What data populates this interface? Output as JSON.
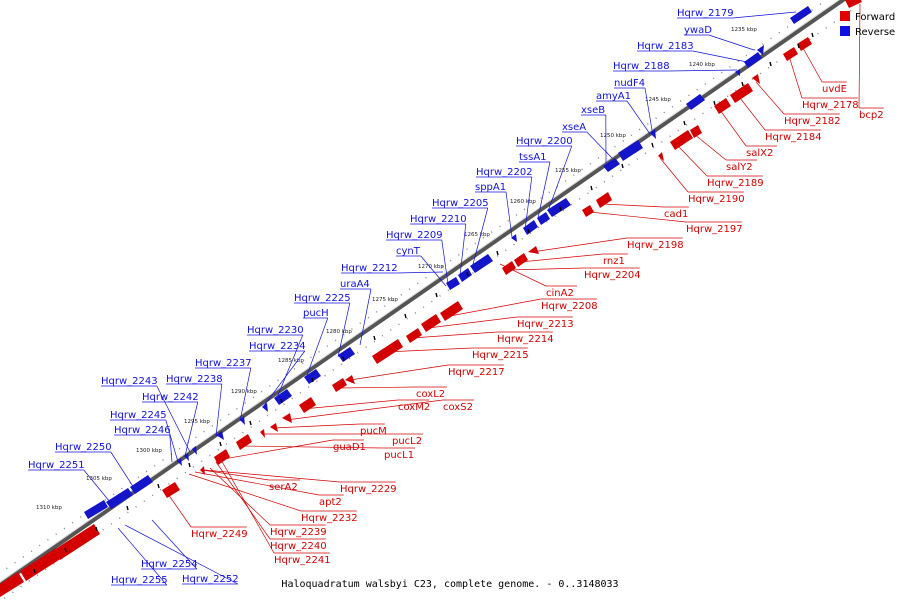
{
  "caption": "Haloquadratum walsbyi C23, complete genome. - 0..3148033",
  "legend": [
    {
      "label": "Forward",
      "color": "#e00000"
    },
    {
      "label": "Reverse",
      "color": "#1010e0"
    }
  ],
  "kbp_labels": [
    "1235 kbp",
    "1240 kbp",
    "1245 kbp",
    "1250 kbp",
    "1255 kbp",
    "1260 kbp",
    "1265 kbp",
    "1270 kbp",
    "1275 kbp",
    "1280 kbp",
    "1285 kbp",
    "1290 kbp",
    "1295 kbp",
    "1300 kbp",
    "1305 kbp",
    "1310 kbp"
  ],
  "reverse_genes": [
    "Hqrw_2179",
    "ywaD",
    "Hqrw_2183",
    "Hqrw_2188",
    "nudF4",
    "amyA1",
    "xseB",
    "xseA",
    "Hqrw_2200",
    "tssA1",
    "Hqrw_2202",
    "sppA1",
    "Hqrw_2205",
    "Hqrw_2210",
    "Hqrw_2209",
    "cynT",
    "Hqrw_2212",
    "uraA4",
    "Hqrw_2225",
    "pucH",
    "Hqrw_2230",
    "Hqrw_2234",
    "Hqrw_2237",
    "Hqrw_2238",
    "Hqrw_2243",
    "Hqrw_2242",
    "Hqrw_2245",
    "Hqrw_2246",
    "Hqrw_2250",
    "Hqrw_2251",
    "Hqrw_2254",
    "Hqrw_2255",
    "Hqrw_2252"
  ],
  "forward_genes": [
    "uvdE",
    "bcp2",
    "Hqrw_2178",
    "Hqrw_2182",
    "Hqrw_2184",
    "salX2",
    "salY2",
    "Hqrw_2189",
    "Hqrw_2190",
    "cad1",
    "Hqrw_2197",
    "Hqrw_2198",
    "rnz1",
    "Hqrw_2204",
    "cinA2",
    "Hqrw_2208",
    "Hqrw_2213",
    "Hqrw_2214",
    "Hqrw_2215",
    "Hqrw_2217",
    "coxL2",
    "coxM2",
    "coxS2",
    "pucM",
    "pucL2",
    "pucL1",
    "guaD1",
    "Hqrw_2229",
    "serA2",
    "apt2",
    "Hqrw_2232",
    "Hqrw_2239",
    "Hqrw_2240",
    "Hqrw_2241",
    "Hqrw_2249"
  ]
}
